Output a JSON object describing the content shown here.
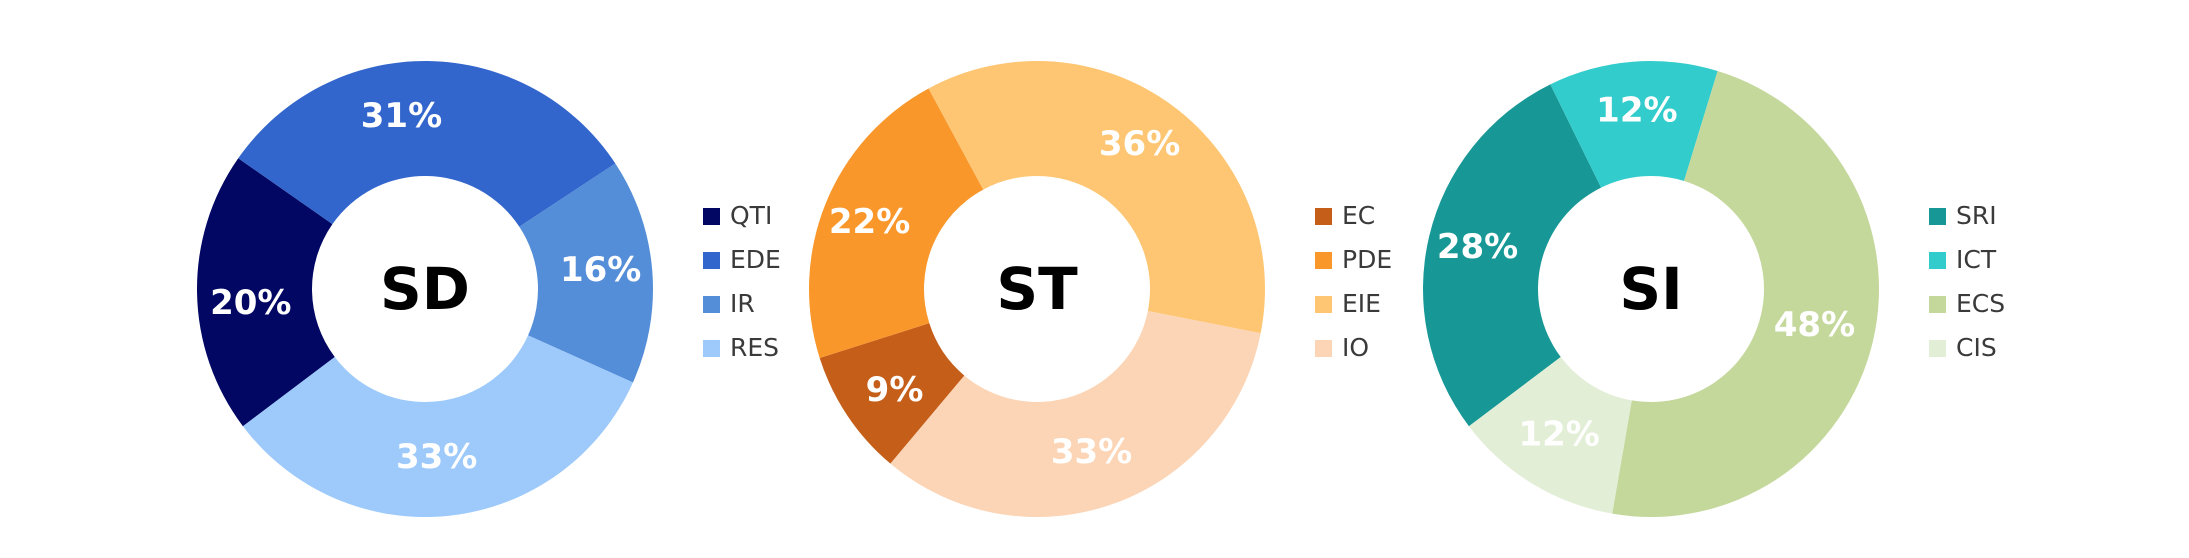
{
  "chart_data": [
    {
      "type": "pie",
      "title": "SD",
      "categories": [
        "QTI",
        "EDE",
        "IR",
        "RES"
      ],
      "values": [
        20,
        31,
        16,
        33
      ],
      "colors": [
        "#020763",
        "#3366CC",
        "#558ED8",
        "#9DCAFB"
      ],
      "labels": [
        "20%",
        "31%",
        "16%",
        "33%"
      ],
      "donut": true,
      "legend_position": "right"
    },
    {
      "type": "pie",
      "title": "ST",
      "categories": [
        "EC",
        "PDE",
        "EIE",
        "IO"
      ],
      "values": [
        9,
        22,
        36,
        33
      ],
      "colors": [
        "#C55E19",
        "#F9972B",
        "#FEC672",
        "#FBD5B5"
      ],
      "labels": [
        "9%",
        "22%",
        "36%",
        "33%"
      ],
      "donut": true,
      "legend_position": "right"
    },
    {
      "type": "pie",
      "title": "SI",
      "categories": [
        "SRI",
        "ICT",
        "ECS",
        "CIS"
      ],
      "values": [
        28,
        12,
        48,
        12
      ],
      "colors": [
        "#179896",
        "#33CCCC",
        "#C5D89C",
        "#E3EED7"
      ],
      "labels": [
        "28%",
        "12%",
        "48%",
        "12%"
      ],
      "donut": true,
      "legend_position": "right"
    }
  ]
}
